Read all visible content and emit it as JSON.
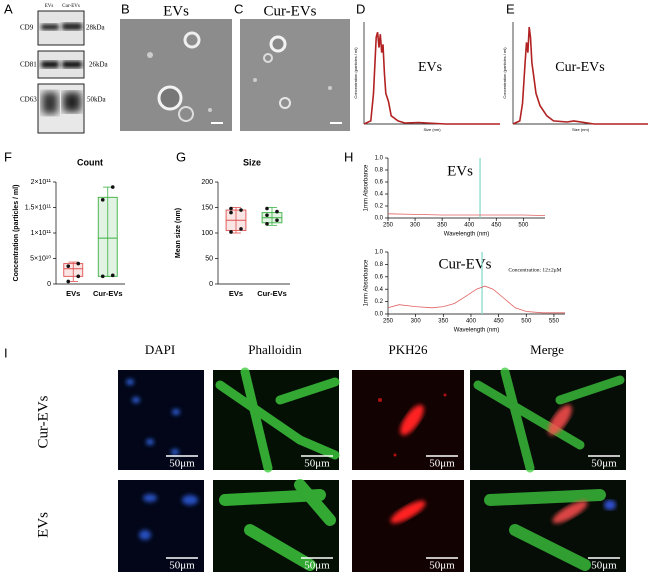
{
  "panel_labels": [
    "A",
    "B",
    "C",
    "D",
    "E",
    "F",
    "G",
    "H",
    "I"
  ],
  "blot": {
    "lanes": [
      "EVs",
      "Cur-EVs"
    ],
    "rows": [
      {
        "protein": "CD9",
        "size": "28kDa"
      },
      {
        "protein": "CD81",
        "size": "26kDa"
      },
      {
        "protein": "CD63",
        "size": "50kDa"
      }
    ]
  },
  "tem": [
    {
      "label": "EVs"
    },
    {
      "label": "Cur-EVs"
    }
  ],
  "chart_data": [
    {
      "type": "line",
      "title": "EVs",
      "x_label": "Size (nm)",
      "y_label": "Concentration (particles / ml)",
      "xlim": [
        0,
        1000
      ],
      "ylim": [
        0,
        10
      ],
      "x": [
        0,
        50,
        70,
        90,
        100,
        110,
        120,
        130,
        140,
        150,
        160,
        180,
        200,
        250,
        300,
        400,
        600,
        1000
      ],
      "series": [
        {
          "name": "EVs",
          "color": "#b22222",
          "values": [
            0,
            0.3,
            3,
            8.5,
            9,
            7.5,
            8.8,
            7,
            7.8,
            5,
            3,
            2.2,
            0.8,
            0.3,
            0.1,
            0.15,
            0,
            0
          ]
        }
      ]
    },
    {
      "type": "line",
      "title": "Cur-EVs",
      "x_label": "Size (nm)",
      "y_label": "Concentration (particles / ml)",
      "xlim": [
        0,
        1000
      ],
      "ylim": [
        0,
        10
      ],
      "x": [
        0,
        50,
        70,
        90,
        100,
        110,
        120,
        130,
        140,
        150,
        170,
        200,
        250,
        300,
        400,
        450,
        600,
        1000
      ],
      "series": [
        {
          "name": "Cur-EVs",
          "color": "#b22222",
          "values": [
            0,
            0.3,
            2,
            6,
            8,
            7,
            9.5,
            8.5,
            6,
            5,
            3,
            1.8,
            0.8,
            0.3,
            0.2,
            0.3,
            0,
            0
          ]
        }
      ]
    },
    {
      "type": "box",
      "title": "Count",
      "y_label": "Concentration (particles / ml)",
      "ylim": [
        0,
        200000000000
      ],
      "yticks": [
        0,
        {
          "value": 50000000000,
          "label": "5×10¹⁰"
        },
        {
          "value": 100000000000,
          "label": "1×10¹¹"
        },
        {
          "value": 150000000000,
          "label": "1.5×10¹¹"
        },
        {
          "value": 200000000000,
          "label": "2×10¹¹"
        }
      ],
      "series": [
        {
          "name": "EVs",
          "color": "#e05050",
          "min": 5000000000,
          "q1": 15000000000,
          "median": 30000000000,
          "q3": 40000000000,
          "max": 43000000000,
          "points": [
            5000000000,
            15000000000,
            35000000000,
            40000000000
          ]
        },
        {
          "name": "Cur-EVs",
          "color": "#3cb043",
          "min": 15000000000,
          "q1": 15000000000,
          "median": 90000000000,
          "q3": 170000000000,
          "max": 190000000000,
          "points": [
            15000000000,
            17000000000,
            165000000000,
            190000000000
          ]
        }
      ]
    },
    {
      "type": "box",
      "title": "Size",
      "y_label": "Mean size (nm)",
      "ylim": [
        0,
        200
      ],
      "yticks": [
        0,
        50,
        100,
        150,
        200
      ],
      "series": [
        {
          "name": "EVs",
          "color": "#e05050",
          "min": 100,
          "q1": 105,
          "median": 125,
          "q3": 145,
          "max": 150,
          "points": [
            102,
            108,
            140,
            145,
            148
          ]
        },
        {
          "name": "Cur-EVs",
          "color": "#3cb043",
          "min": 115,
          "q1": 120,
          "median": 130,
          "q3": 140,
          "max": 150,
          "points": [
            118,
            125,
            135,
            142,
            148
          ]
        }
      ]
    },
    {
      "type": "line",
      "title": "EVs",
      "x_label": "Wavelength (nm)",
      "y_label": "1mm Absorbance",
      "xlim": [
        250,
        540
      ],
      "ylim": [
        0,
        1
      ],
      "xticks": [
        250,
        300,
        350,
        400,
        450,
        500
      ],
      "yticks": [
        {
          "value": 0,
          "label": "0.0"
        },
        0.2,
        0.4,
        0.6,
        0.8,
        {
          "value": 1,
          "label": "1.0"
        }
      ],
      "vline": 420,
      "vline_color": "#7fd8c8",
      "x": [
        250,
        300,
        350,
        400,
        450,
        500,
        540
      ],
      "series": [
        {
          "name": "EVs",
          "color": "#e06060",
          "values": [
            0.07,
            0.06,
            0.05,
            0.05,
            0.05,
            0.05,
            0.04
          ]
        }
      ]
    },
    {
      "type": "line",
      "title": "Cur-EVs",
      "annotation": "Concentration: 12±2μM",
      "x_label": "Wavelength (nm)",
      "y_label": "1mm Absorbance",
      "xlim": [
        250,
        570
      ],
      "ylim": [
        0,
        1
      ],
      "xticks": [
        250,
        300,
        350,
        400,
        450,
        500,
        550
      ],
      "yticks": [
        {
          "value": 0,
          "label": "0.0"
        },
        0.2,
        0.4,
        0.6,
        0.8,
        {
          "value": 1,
          "label": "1.0"
        }
      ],
      "vline": 420,
      "vline_color": "#7fd8c8",
      "x": [
        250,
        270,
        300,
        330,
        350,
        370,
        390,
        410,
        425,
        440,
        460,
        480,
        500,
        530,
        570
      ],
      "series": [
        {
          "name": "Cur-EVs",
          "color": "#e06060",
          "values": [
            0.1,
            0.15,
            0.12,
            0.1,
            0.12,
            0.17,
            0.28,
            0.4,
            0.45,
            0.4,
            0.25,
            0.1,
            0.04,
            0.02,
            0.02
          ]
        }
      ]
    }
  ],
  "fluorescence": {
    "columns": [
      "DAPI",
      "Phalloidin",
      "PKH26",
      "Merge"
    ],
    "rows": [
      "Cur-EVs",
      "EVs"
    ],
    "scale_bar": "50μm"
  }
}
